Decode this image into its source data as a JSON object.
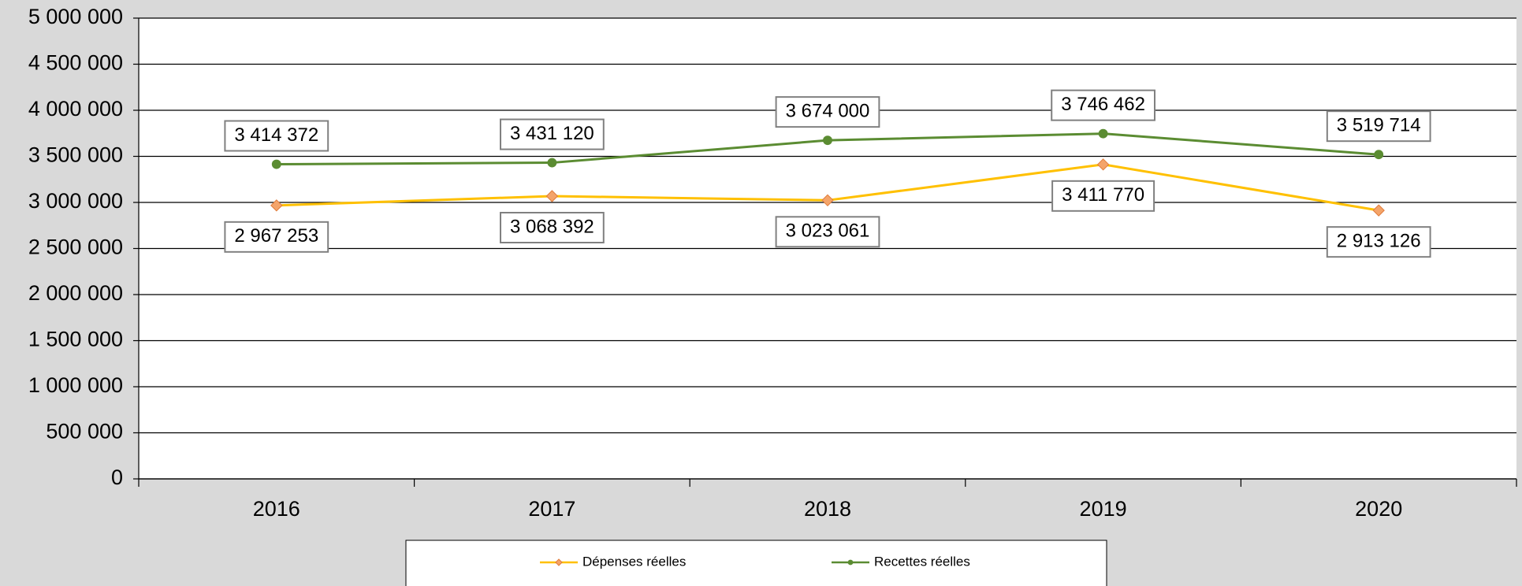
{
  "chart_data": {
    "type": "line",
    "categories": [
      "2016",
      "2017",
      "2018",
      "2019",
      "2020"
    ],
    "series": [
      {
        "name": "Dépenses réelles",
        "color": "#ffc000",
        "marker": "diamond",
        "marker_color": "#f4a46a",
        "values": [
          2967253,
          3068392,
          3023061,
          3411770,
          2913126
        ],
        "value_labels": [
          "2 967 253",
          "3 068 392",
          "3 023 061",
          "3 411 770",
          "2 913 126"
        ]
      },
      {
        "name": "Recettes réelles",
        "color": "#5b8c32",
        "marker": "circle",
        "marker_color": "#5b8c32",
        "values": [
          3414372,
          3431120,
          3674000,
          3746462,
          3519714
        ],
        "value_labels": [
          "3 414 372",
          "3 431 120",
          "3 674 000",
          "3 746 462",
          "3 519 714"
        ]
      }
    ],
    "ylim": [
      0,
      5000000
    ],
    "yticks": [
      0,
      {
        "value": 500000,
        "label": "500 000"
      },
      {
        "value": 1000000,
        "label": "1 000 000"
      },
      {
        "value": 1500000,
        "label": "1 500 000"
      },
      {
        "value": 2000000,
        "label": "2 000 000"
      },
      {
        "value": 2500000,
        "label": "2 500 000"
      },
      {
        "value": 3000000,
        "label": "3 000 000"
      },
      {
        "value": 3500000,
        "label": "3 500 000"
      },
      {
        "value": 4000000,
        "label": "4 000 000"
      },
      {
        "value": 4500000,
        "label": "4 500 000"
      },
      {
        "value": 5000000,
        "label": "5 000 000"
      }
    ],
    "grid": true,
    "legend": "bottom"
  }
}
